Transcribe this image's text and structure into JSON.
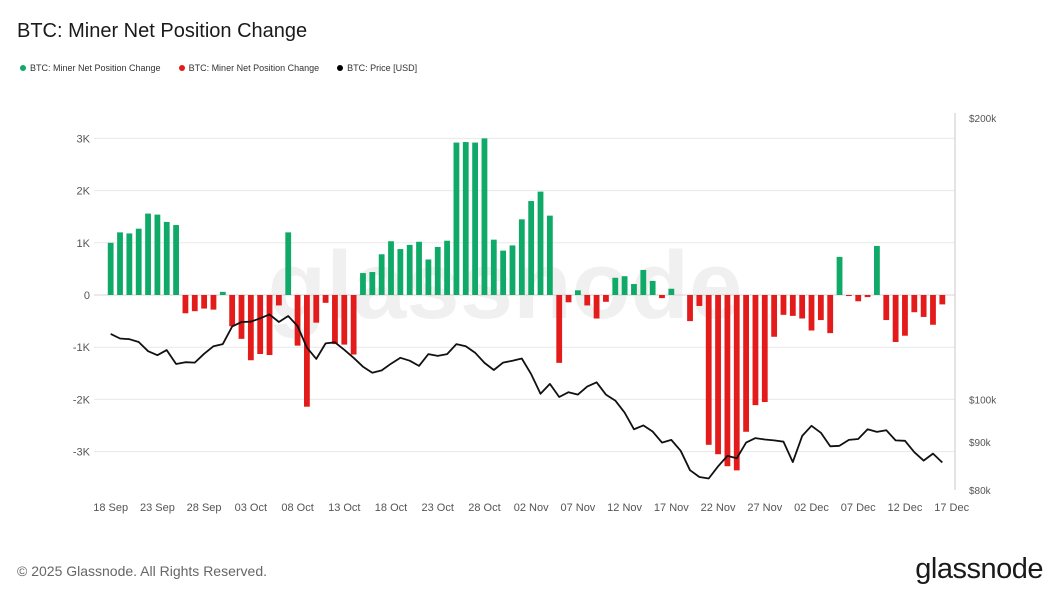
{
  "title": "BTC: Miner Net Position Change",
  "legend": [
    {
      "label": "BTC: Miner Net Position Change",
      "color": "#0fa968"
    },
    {
      "label": "BTC: Miner Net Position Change",
      "color": "#e31b1b"
    },
    {
      "label": "BTC: Price [USD]",
      "color": "#000000"
    }
  ],
  "watermark": "glassnode",
  "footer": "© 2025 Glassnode. All Rights Reserved.",
  "brand": "glassnode",
  "colors": {
    "positive": "#0fa968",
    "negative": "#e31b1b",
    "price": "#111111",
    "grid": "#e8e8e8"
  },
  "chart_data": {
    "type": "bar",
    "x_start": "2025-09-18",
    "x_tick_labels": [
      "18 Sep",
      "23 Sep",
      "28 Sep",
      "03 Oct",
      "08 Oct",
      "13 Oct",
      "18 Oct",
      "23 Oct",
      "28 Oct",
      "02 Nov",
      "07 Nov",
      "12 Nov",
      "17 Nov",
      "22 Nov",
      "27 Nov",
      "02 Dec",
      "07 Dec",
      "12 Dec",
      "17 Dec"
    ],
    "left_axis": {
      "ylim": [
        -3700,
        3300
      ],
      "ticks": [
        3000,
        2000,
        1000,
        0,
        -1000,
        -2000,
        -3000
      ],
      "tick_labels": [
        "3K",
        "2K",
        "1K",
        "0",
        "-1K",
        "-2K",
        "-3K"
      ]
    },
    "right_axis": {
      "scale": "log",
      "ylim": [
        80000,
        200000
      ],
      "ticks": [
        200000,
        100000,
        90000,
        80000
      ],
      "tick_labels": [
        "$200k",
        "$100k",
        "$90k",
        "$80k"
      ]
    },
    "series": [
      {
        "name": "BTC: Miner Net Position Change",
        "values": [
          1000,
          1200,
          1180,
          1270,
          1560,
          1540,
          1400,
          1340,
          -350,
          -310,
          -260,
          -280,
          60,
          -600,
          -840,
          -1250,
          -1130,
          -1150,
          -200,
          1200,
          -970,
          -2140,
          -530,
          -150,
          -940,
          -950,
          -1140,
          420,
          440,
          780,
          1030,
          880,
          960,
          1020,
          680,
          920,
          1040,
          2920,
          2930,
          2920,
          3000,
          1060,
          850,
          950,
          1450,
          1800,
          1980,
          1520,
          -1300,
          -140,
          90,
          -200,
          -450,
          -130,
          330,
          360,
          210,
          480,
          270,
          -60,
          120,
          0,
          -500,
          -210,
          -2870,
          -3050,
          -3280,
          -3360,
          -2620,
          -2110,
          -2050,
          -800,
          -380,
          -400,
          -450,
          -680,
          -480,
          -730,
          730,
          -20,
          -120,
          -40,
          940,
          -480,
          -900,
          -780,
          -330,
          -420,
          -570,
          -180
        ]
      },
      {
        "name": "BTC: Price [USD]",
        "values": [
          117500,
          116200,
          116000,
          115200,
          112600,
          111500,
          112900,
          109100,
          109600,
          109500,
          111900,
          114000,
          114600,
          119700,
          121000,
          121100,
          122100,
          123300,
          121000,
          122800,
          119800,
          113600,
          110500,
          114800,
          115100,
          113000,
          110800,
          108400,
          106800,
          107400,
          109200,
          110800,
          110000,
          108600,
          111800,
          111300,
          111800,
          114600,
          114000,
          112200,
          109400,
          107500,
          109500,
          110000,
          110600,
          106400,
          101400,
          103900,
          100600,
          101800,
          101200,
          103200,
          104300,
          101200,
          99700,
          96800,
          92900,
          93800,
          92400,
          89900,
          90500,
          88100,
          84000,
          82600,
          82300,
          84800,
          87000,
          86500,
          89900,
          90900,
          90600,
          90400,
          90100,
          85700,
          91400,
          93700,
          92100,
          89100,
          89200,
          90500,
          90700,
          92900,
          92300,
          92700,
          90400,
          90300,
          87800,
          86000,
          87500,
          85600
        ]
      }
    ]
  }
}
